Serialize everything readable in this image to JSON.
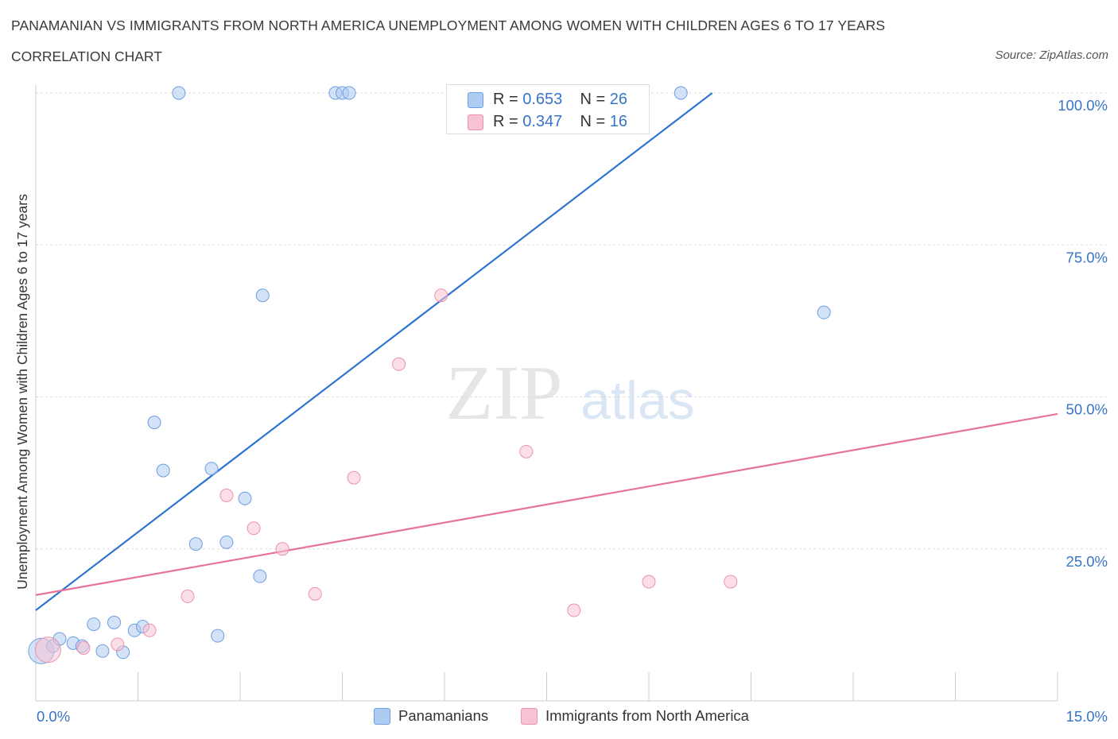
{
  "header": {
    "title": "PANAMANIAN VS IMMIGRANTS FROM NORTH AMERICA UNEMPLOYMENT AMONG WOMEN WITH CHILDREN AGES 6 TO 17 YEARS",
    "subtitle": "CORRELATION CHART",
    "source": "Source: ZipAtlas.com"
  },
  "legend": {
    "rows": [
      {
        "r_label": "R =",
        "r_value": "0.653",
        "n_label": "N =",
        "n_value": "26"
      },
      {
        "r_label": "R =",
        "r_value": "0.347",
        "n_label": "N =",
        "n_value": "16"
      }
    ]
  },
  "bottom_legend": {
    "series_a": "Panamanians",
    "series_b": "Immigrants from North America"
  },
  "watermark": {
    "zip": "ZIP",
    "atlas": "atlas"
  },
  "colors": {
    "blue_fill": "#aecbf1",
    "blue_stroke": "#6d9fe0",
    "blue_line": "#2f74d0",
    "pink_fill": "#f7c3d2",
    "pink_stroke": "#eb93ad",
    "pink_line": "#e8739a",
    "axis_label": "#3874c7",
    "grid": "#dddddd"
  },
  "chart_data": {
    "type": "scatter",
    "title": "PANAMANIAN VS IMMIGRANTS FROM NORTH AMERICA UNEMPLOYMENT AMONG WOMEN WITH CHILDREN AGES 6 TO 17 YEARS",
    "xlabel": "",
    "ylabel": "Unemployment Among Women with Children Ages 6 to 17 years",
    "xlim": [
      0,
      15
    ],
    "ylim": [
      0,
      100
    ],
    "x_tick_labels": [
      "0.0%",
      "15.0%"
    ],
    "y_tick_labels": [
      "25.0%",
      "50.0%",
      "75.0%",
      "100.0%"
    ],
    "y_ticks": [
      25,
      50,
      75,
      100
    ],
    "grid": true,
    "legend_position": "top-center",
    "series": [
      {
        "name": "Panamanians",
        "color": "#aecbf1",
        "r": 0.653,
        "n": 26,
        "trend": {
          "x": [
            0,
            9.93
          ],
          "y": [
            14.9,
            100
          ]
        },
        "points": [
          {
            "x": 0.08,
            "y": 8.2,
            "big": true
          },
          {
            "x": 0.25,
            "y": 9.0
          },
          {
            "x": 0.35,
            "y": 10.2
          },
          {
            "x": 0.55,
            "y": 9.5
          },
          {
            "x": 0.68,
            "y": 9.0
          },
          {
            "x": 0.85,
            "y": 12.6
          },
          {
            "x": 0.98,
            "y": 8.2
          },
          {
            "x": 1.15,
            "y": 12.9
          },
          {
            "x": 1.28,
            "y": 8.0
          },
          {
            "x": 1.45,
            "y": 11.6
          },
          {
            "x": 1.57,
            "y": 12.2
          },
          {
            "x": 1.74,
            "y": 45.8
          },
          {
            "x": 1.87,
            "y": 37.9
          },
          {
            "x": 2.1,
            "y": 100
          },
          {
            "x": 2.35,
            "y": 25.8
          },
          {
            "x": 2.58,
            "y": 38.2
          },
          {
            "x": 2.67,
            "y": 10.7
          },
          {
            "x": 2.8,
            "y": 26.1
          },
          {
            "x": 3.07,
            "y": 33.3
          },
          {
            "x": 3.29,
            "y": 20.5
          },
          {
            "x": 3.33,
            "y": 66.7
          },
          {
            "x": 4.4,
            "y": 100
          },
          {
            "x": 4.5,
            "y": 100
          },
          {
            "x": 4.6,
            "y": 100
          },
          {
            "x": 9.47,
            "y": 100
          },
          {
            "x": 11.57,
            "y": 63.9
          }
        ]
      },
      {
        "name": "Immigrants from North America",
        "color": "#f7c3d2",
        "r": 0.347,
        "n": 16,
        "trend": {
          "x": [
            0,
            15
          ],
          "y": [
            17.4,
            47.2
          ]
        },
        "points": [
          {
            "x": 0.18,
            "y": 8.4,
            "big": true
          },
          {
            "x": 0.7,
            "y": 8.7
          },
          {
            "x": 1.2,
            "y": 9.3
          },
          {
            "x": 1.67,
            "y": 11.6
          },
          {
            "x": 2.23,
            "y": 17.2
          },
          {
            "x": 2.8,
            "y": 33.8
          },
          {
            "x": 3.2,
            "y": 28.4
          },
          {
            "x": 3.62,
            "y": 25.0
          },
          {
            "x": 4.1,
            "y": 17.6
          },
          {
            "x": 4.67,
            "y": 36.7
          },
          {
            "x": 5.33,
            "y": 55.4
          },
          {
            "x": 5.95,
            "y": 66.7
          },
          {
            "x": 7.2,
            "y": 41.0
          },
          {
            "x": 7.9,
            "y": 14.9
          },
          {
            "x": 9.0,
            "y": 19.6
          },
          {
            "x": 10.2,
            "y": 19.6
          }
        ]
      }
    ]
  }
}
